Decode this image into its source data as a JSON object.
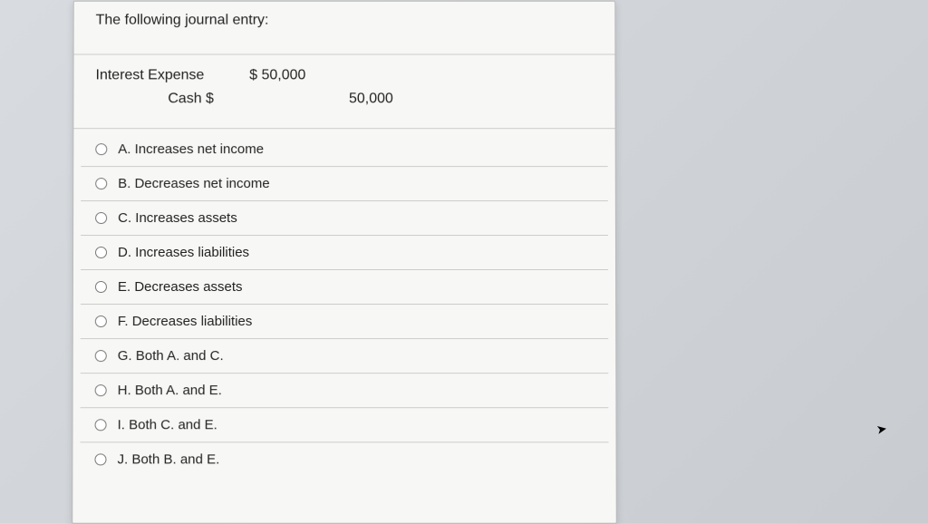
{
  "question": {
    "stem": "The following journal entry:",
    "journal_entry": {
      "rows": [
        {
          "account": "Interest Expense",
          "debit": "$ 50,000",
          "credit": "",
          "indent": false
        },
        {
          "account": "Cash $",
          "debit": "",
          "credit": "50,000",
          "indent": true
        }
      ]
    },
    "options": [
      {
        "letter": "A",
        "text": "A. Increases net income"
      },
      {
        "letter": "B",
        "text": "B. Decreases net income"
      },
      {
        "letter": "C",
        "text": "C. Increases assets"
      },
      {
        "letter": "D",
        "text": "D. Increases liabilities"
      },
      {
        "letter": "E",
        "text": "E. Decreases assets"
      },
      {
        "letter": "F",
        "text": "F. Decreases liabilities"
      },
      {
        "letter": "G",
        "text": "G. Both A. and C."
      },
      {
        "letter": "H",
        "text": "H. Both A. and E."
      },
      {
        "letter": "I",
        "text": "I. Both C. and E."
      },
      {
        "letter": "J",
        "text": "J. Both B. and E."
      }
    ]
  },
  "colors": {
    "card_bg": "#f7f7f5",
    "border": "#cccccc",
    "text": "#222222",
    "page_bg": "#d8dce0"
  }
}
